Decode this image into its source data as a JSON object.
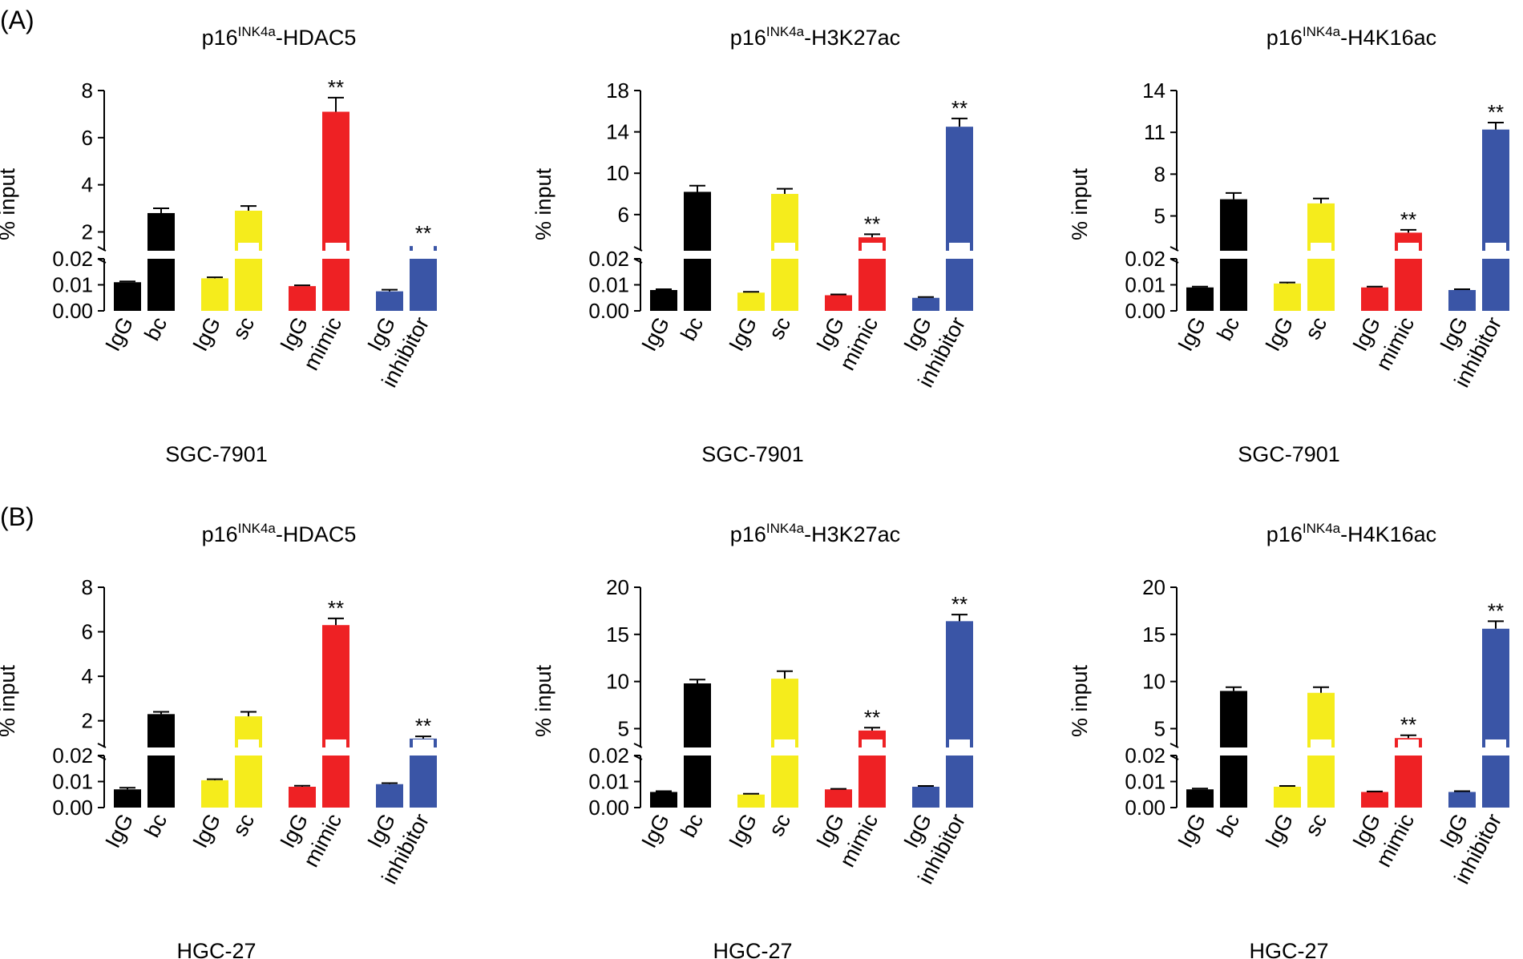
{
  "figure": {
    "panel_labels": [
      "(A)",
      "(B)"
    ],
    "bar_colors": [
      "#000000",
      "#000000",
      "#f5ec1c",
      "#f5ec1c",
      "#ee2124",
      "#ee2124",
      "#3a55a6",
      "#3a55a6"
    ],
    "break_fill_color": "#ffffff",
    "significance_mark": "**"
  },
  "chart_data": [
    {
      "type": "bar",
      "panel": "(A)",
      "title_prefix": "p16",
      "title_superscript": "INK4a",
      "title_suffix": "-HDAC5",
      "cell_line": "SGC-7901",
      "ylabel": "% input",
      "categories": [
        "IgG",
        "bc",
        "IgG",
        "sc",
        "IgG",
        "mimic",
        "IgG",
        "inhibitor"
      ],
      "values": [
        0.011,
        2.8,
        0.0125,
        2.9,
        0.0095,
        7.1,
        0.0075,
        1.4
      ],
      "errors": [
        0.0003,
        0.2,
        0.0004,
        0.2,
        0.0003,
        0.6,
        0.0006,
        0.1
      ],
      "significance": [
        false,
        false,
        false,
        false,
        false,
        true,
        false,
        true
      ],
      "lower_axis": {
        "ylim": [
          0,
          0.02
        ],
        "ticks": [
          "0.00",
          "0.01",
          "0.02"
        ]
      },
      "upper_axis": {
        "ylim": [
          1.2,
          8
        ],
        "ticks": [
          "2",
          "4",
          "6",
          "8"
        ]
      },
      "upper_tick_values": [
        2,
        4,
        6,
        8
      ]
    },
    {
      "type": "bar",
      "panel": "(A)",
      "title_prefix": "p16",
      "title_superscript": "INK4a",
      "title_suffix": "-H3K27ac",
      "cell_line": "SGC-7901",
      "ylabel": "% input",
      "categories": [
        "IgG",
        "bc",
        "IgG",
        "sc",
        "IgG",
        "mimic",
        "IgG",
        "inhibitor"
      ],
      "values": [
        0.008,
        8.2,
        0.007,
        8.0,
        0.006,
        3.8,
        0.005,
        14.5
      ],
      "errors": [
        0.0003,
        0.6,
        0.0003,
        0.5,
        0.0003,
        0.3,
        0.0003,
        0.8
      ],
      "significance": [
        false,
        false,
        false,
        false,
        false,
        true,
        false,
        true
      ],
      "lower_axis": {
        "ylim": [
          0,
          0.02
        ],
        "ticks": [
          "0.00",
          "0.01",
          "0.02"
        ]
      },
      "upper_axis": {
        "ylim": [
          2.5,
          18
        ],
        "ticks": [
          "6",
          "10",
          "14",
          "18"
        ]
      },
      "upper_tick_values": [
        6,
        10,
        14,
        18
      ]
    },
    {
      "type": "bar",
      "panel": "(A)",
      "title_prefix": "p16",
      "title_superscript": "INK4a",
      "title_suffix": "-H4K16ac",
      "cell_line": "SGC-7901",
      "ylabel": "% input",
      "categories": [
        "IgG",
        "bc",
        "IgG",
        "sc",
        "IgG",
        "mimic",
        "IgG",
        "inhibitor"
      ],
      "values": [
        0.009,
        6.2,
        0.0105,
        5.9,
        0.009,
        3.8,
        0.008,
        11.2
      ],
      "errors": [
        0.0003,
        0.45,
        0.0004,
        0.35,
        0.0003,
        0.2,
        0.0003,
        0.5
      ],
      "significance": [
        false,
        false,
        false,
        false,
        false,
        true,
        false,
        true
      ],
      "lower_axis": {
        "ylim": [
          0,
          0.02
        ],
        "ticks": [
          "0.00",
          "0.01",
          "0.02"
        ]
      },
      "upper_axis": {
        "ylim": [
          2.5,
          14
        ],
        "ticks": [
          "5",
          "8",
          "11",
          "14"
        ]
      },
      "upper_tick_values": [
        5,
        8,
        11,
        14
      ]
    },
    {
      "type": "bar",
      "panel": "(B)",
      "title_prefix": "p16",
      "title_superscript": "INK4a",
      "title_suffix": "-HDAC5",
      "cell_line": "HGC-27",
      "ylabel": "% input",
      "categories": [
        "IgG",
        "bc",
        "IgG",
        "sc",
        "IgG",
        "mimic",
        "IgG",
        "inhibitor"
      ],
      "values": [
        0.007,
        2.3,
        0.0105,
        2.2,
        0.008,
        6.3,
        0.009,
        1.2
      ],
      "errors": [
        0.0006,
        0.1,
        0.0004,
        0.2,
        0.0004,
        0.3,
        0.0004,
        0.1
      ],
      "significance": [
        false,
        false,
        false,
        false,
        false,
        true,
        false,
        true
      ],
      "lower_axis": {
        "ylim": [
          0,
          0.02
        ],
        "ticks": [
          "0.00",
          "0.01",
          "0.02"
        ]
      },
      "upper_axis": {
        "ylim": [
          0.8,
          8
        ],
        "ticks": [
          "2",
          "4",
          "6",
          "8"
        ]
      },
      "upper_tick_values": [
        2,
        4,
        6,
        8
      ]
    },
    {
      "type": "bar",
      "panel": "(B)",
      "title_prefix": "p16",
      "title_superscript": "INK4a",
      "title_suffix": "-H3K27ac",
      "cell_line": "HGC-27",
      "ylabel": "% input",
      "categories": [
        "IgG",
        "bc",
        "IgG",
        "sc",
        "IgG",
        "mimic",
        "IgG",
        "inhibitor"
      ],
      "values": [
        0.006,
        9.8,
        0.005,
        10.3,
        0.007,
        4.8,
        0.008,
        16.4
      ],
      "errors": [
        0.0003,
        0.4,
        0.0003,
        0.8,
        0.0002,
        0.3,
        0.0003,
        0.7
      ],
      "significance": [
        false,
        false,
        false,
        false,
        false,
        true,
        false,
        true
      ],
      "lower_axis": {
        "ylim": [
          0,
          0.02
        ],
        "ticks": [
          "0.00",
          "0.01",
          "0.02"
        ]
      },
      "upper_axis": {
        "ylim": [
          3,
          20
        ],
        "ticks": [
          "5",
          "10",
          "15",
          "20"
        ]
      },
      "upper_tick_values": [
        5,
        10,
        15,
        20
      ]
    },
    {
      "type": "bar",
      "panel": "(B)",
      "title_prefix": "p16",
      "title_superscript": "INK4a",
      "title_suffix": "-H4K16ac",
      "cell_line": "HGC-27",
      "ylabel": "% input",
      "categories": [
        "IgG",
        "bc",
        "IgG",
        "sc",
        "IgG",
        "mimic",
        "IgG",
        "inhibitor"
      ],
      "values": [
        0.007,
        9.0,
        0.008,
        8.8,
        0.006,
        4.0,
        0.006,
        15.6
      ],
      "errors": [
        0.0003,
        0.4,
        0.0003,
        0.6,
        0.0002,
        0.3,
        0.0003,
        0.8
      ],
      "significance": [
        false,
        false,
        false,
        false,
        false,
        true,
        false,
        true
      ],
      "lower_axis": {
        "ylim": [
          0,
          0.02
        ],
        "ticks": [
          "0.00",
          "0.01",
          "0.02"
        ]
      },
      "upper_axis": {
        "ylim": [
          3,
          20
        ],
        "ticks": [
          "5",
          "10",
          "15",
          "20"
        ]
      },
      "upper_tick_values": [
        5,
        10,
        15,
        20
      ]
    }
  ]
}
